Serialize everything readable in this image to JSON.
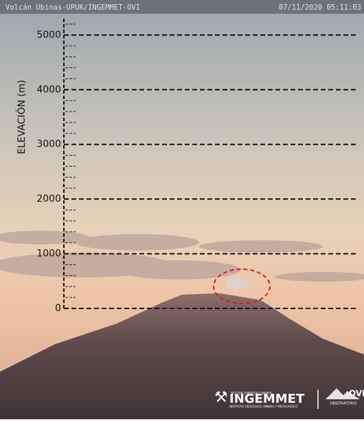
{
  "header": {
    "camera": "Volcán Ubinas-UPUK/INGEMMET-OVI",
    "timestamp": "07/11/2020 05:11:03"
  },
  "scale": {
    "label": "ELEVACIÓN (m)",
    "ylim": [
      0,
      5300
    ],
    "ticks": [
      0,
      1000,
      2000,
      3000,
      4000,
      5000
    ],
    "minor_ticks": [
      200,
      400,
      600,
      800,
      1200,
      1400,
      1600,
      1800,
      2200,
      2400,
      2600,
      2800,
      3200,
      3400,
      3600,
      3800,
      4200,
      4400,
      4600,
      4800,
      5200
    ]
  },
  "logos": {
    "ministry": "SECTOR ENERGÍA Y MINAS",
    "ingemmet": "INGEMMET",
    "institute": "INSTITUTO GEOLÓGICO, MINERO Y METALÚRGICO",
    "ovi": "OVI",
    "observatory": "OBSERVATORIO"
  }
}
